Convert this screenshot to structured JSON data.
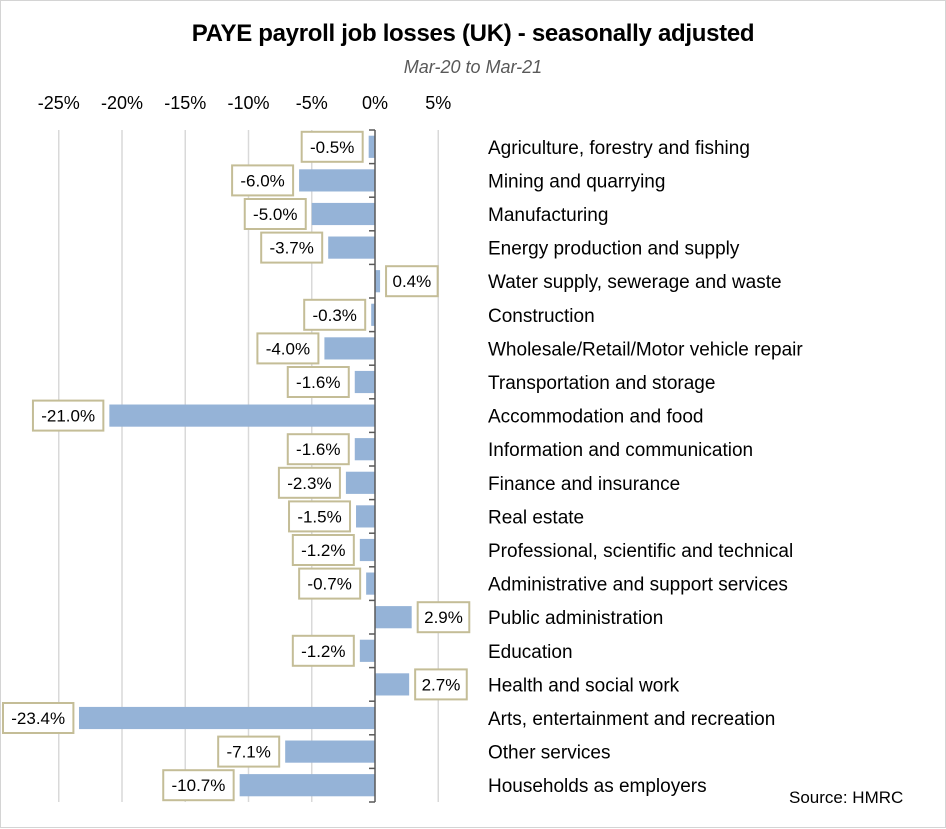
{
  "chart_data": {
    "type": "bar",
    "orientation": "horizontal",
    "title": "PAYE payroll job losses (UK)  - seasonally adjusted",
    "subtitle": "Mar-20 to Mar-21",
    "source": "Source: HMRC",
    "xlabel": "",
    "ylabel": "",
    "xlim": [
      -25,
      5
    ],
    "x_ticks": [
      -25,
      -20,
      -15,
      -10,
      -5,
      0,
      5
    ],
    "x_tick_labels": [
      "-25%",
      "-20%",
      "-15%",
      "-10%",
      "-5%",
      "0%",
      "5%"
    ],
    "x_axis_position": "top",
    "grid": true,
    "legend": "none",
    "bar_color": "#95b3d7",
    "label_border_color": "#c4bd97",
    "categories": [
      "Agriculture, forestry and fishing",
      "Mining and quarrying",
      "Manufacturing",
      "Energy production and supply",
      "Water supply, sewerage and waste",
      "Construction",
      "Wholesale/Retail/Motor vehicle repair",
      "Transportation and storage",
      "Accommodation and food",
      "Information and communication",
      "Finance and insurance",
      "Real estate",
      "Professional, scientific and technical",
      "Administrative and support services",
      "Public administration",
      "Education",
      "Health and social work",
      "Arts, entertainment and recreation",
      "Other services",
      "Households as employers"
    ],
    "values": [
      -0.5,
      -6.0,
      -5.0,
      -3.7,
      0.4,
      -0.3,
      -4.0,
      -1.6,
      -21.0,
      -1.6,
      -2.3,
      -1.5,
      -1.2,
      -0.7,
      2.9,
      -1.2,
      2.7,
      -23.4,
      -7.1,
      -10.7
    ],
    "data_labels": [
      "-0.5%",
      "-6.0%",
      "-5.0%",
      "-3.7%",
      "0.4%",
      "-0.3%",
      "-4.0%",
      "-1.6%",
      "-21.0%",
      "-1.6%",
      "-2.3%",
      "-1.5%",
      "-1.2%",
      "-0.7%",
      "2.9%",
      "-1.2%",
      "2.7%",
      "-23.4%",
      "-7.1%",
      "-10.7%"
    ]
  }
}
